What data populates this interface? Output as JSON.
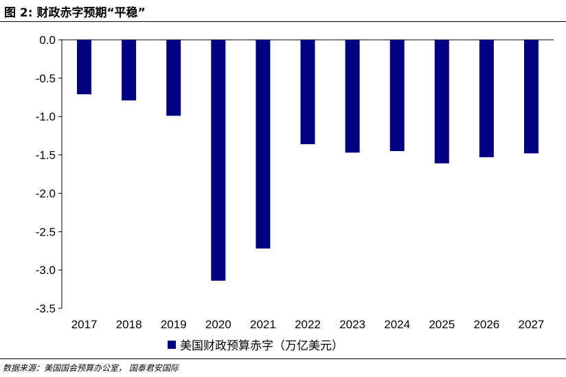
{
  "figure_title": "图 2:  财政赤字预期“平稳”",
  "source_note": "数据来源：美国国会预算办公室，  国泰君安国际",
  "chart_data": {
    "type": "bar",
    "categories": [
      "2017",
      "2018",
      "2019",
      "2020",
      "2021",
      "2022",
      "2023",
      "2024",
      "2025",
      "2026",
      "2027"
    ],
    "series": [
      {
        "name": "美国财政预算赤字（万亿美元）",
        "values": [
          -0.71,
          -0.79,
          -0.99,
          -3.14,
          -2.72,
          -1.36,
          -1.47,
          -1.45,
          -1.61,
          -1.53,
          -1.48
        ],
        "color": "#000080"
      }
    ],
    "yticks": [
      "0.0",
      "-0.5",
      "-1.0",
      "-1.5",
      "-2.0",
      "-2.5",
      "-3.0",
      "-3.5"
    ],
    "ylim": [
      -3.5,
      0
    ],
    "grid": false,
    "legend_position": "bottom"
  }
}
